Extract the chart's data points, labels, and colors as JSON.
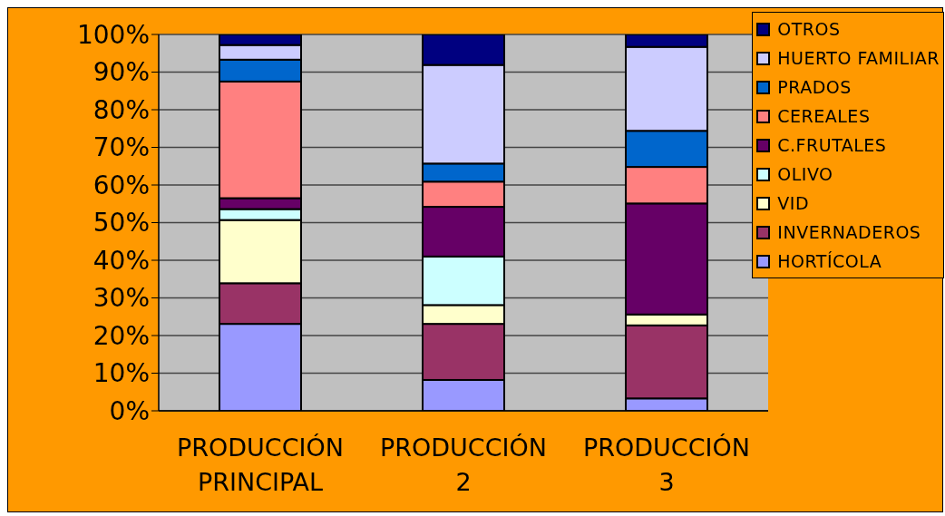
{
  "chart_data": {
    "type": "bar",
    "stacked": true,
    "categories": [
      "PRODUCCIÓN PRINCIPAL",
      "PRODUCCIÓN 2",
      "PRODUCCIÓN 3"
    ],
    "series": [
      {
        "name": "HORTÍCOLA",
        "color": "#9999ff",
        "values": [
          23.1,
          8.2,
          3.3
        ]
      },
      {
        "name": "INVERNADEROS",
        "color": "#993366",
        "values": [
          10.8,
          14.9,
          19.4
        ]
      },
      {
        "name": "VID",
        "color": "#ffffcc",
        "values": [
          16.8,
          5.0,
          2.9
        ]
      },
      {
        "name": "OLIVO",
        "color": "#ccffff",
        "values": [
          2.9,
          12.9,
          null
        ]
      },
      {
        "name": "C.FRUTALES",
        "color": "#660066",
        "values": [
          2.9,
          13.2,
          29.5
        ]
      },
      {
        "name": "CEREALES",
        "color": "#ff8080",
        "values": [
          31.0,
          6.7,
          9.7
        ]
      },
      {
        "name": "PRADOS",
        "color": "#0066cc",
        "values": [
          5.8,
          4.8,
          9.6
        ]
      },
      {
        "name": "HUERTO FAMILIAR",
        "color": "#ccccff",
        "values": [
          3.9,
          26.2,
          22.3
        ]
      },
      {
        "name": "OTROS",
        "color": "#000080",
        "values": [
          2.8,
          8.1,
          3.3
        ]
      }
    ],
    "ylim": [
      0,
      100
    ],
    "yticks": [
      {
        "value": 0,
        "label": "0%"
      },
      {
        "value": 10,
        "label": "10%"
      },
      {
        "value": 20,
        "label": "20%"
      },
      {
        "value": 30,
        "label": "30%"
      },
      {
        "value": 40,
        "label": "40%"
      },
      {
        "value": 50,
        "label": "50%"
      },
      {
        "value": 60,
        "label": "60%"
      },
      {
        "value": 70,
        "label": "70%"
      },
      {
        "value": 80,
        "label": "80%"
      },
      {
        "value": 90,
        "label": "90%"
      },
      {
        "value": 100,
        "label": "100%"
      }
    ],
    "grid": "y",
    "legend": "top right"
  }
}
